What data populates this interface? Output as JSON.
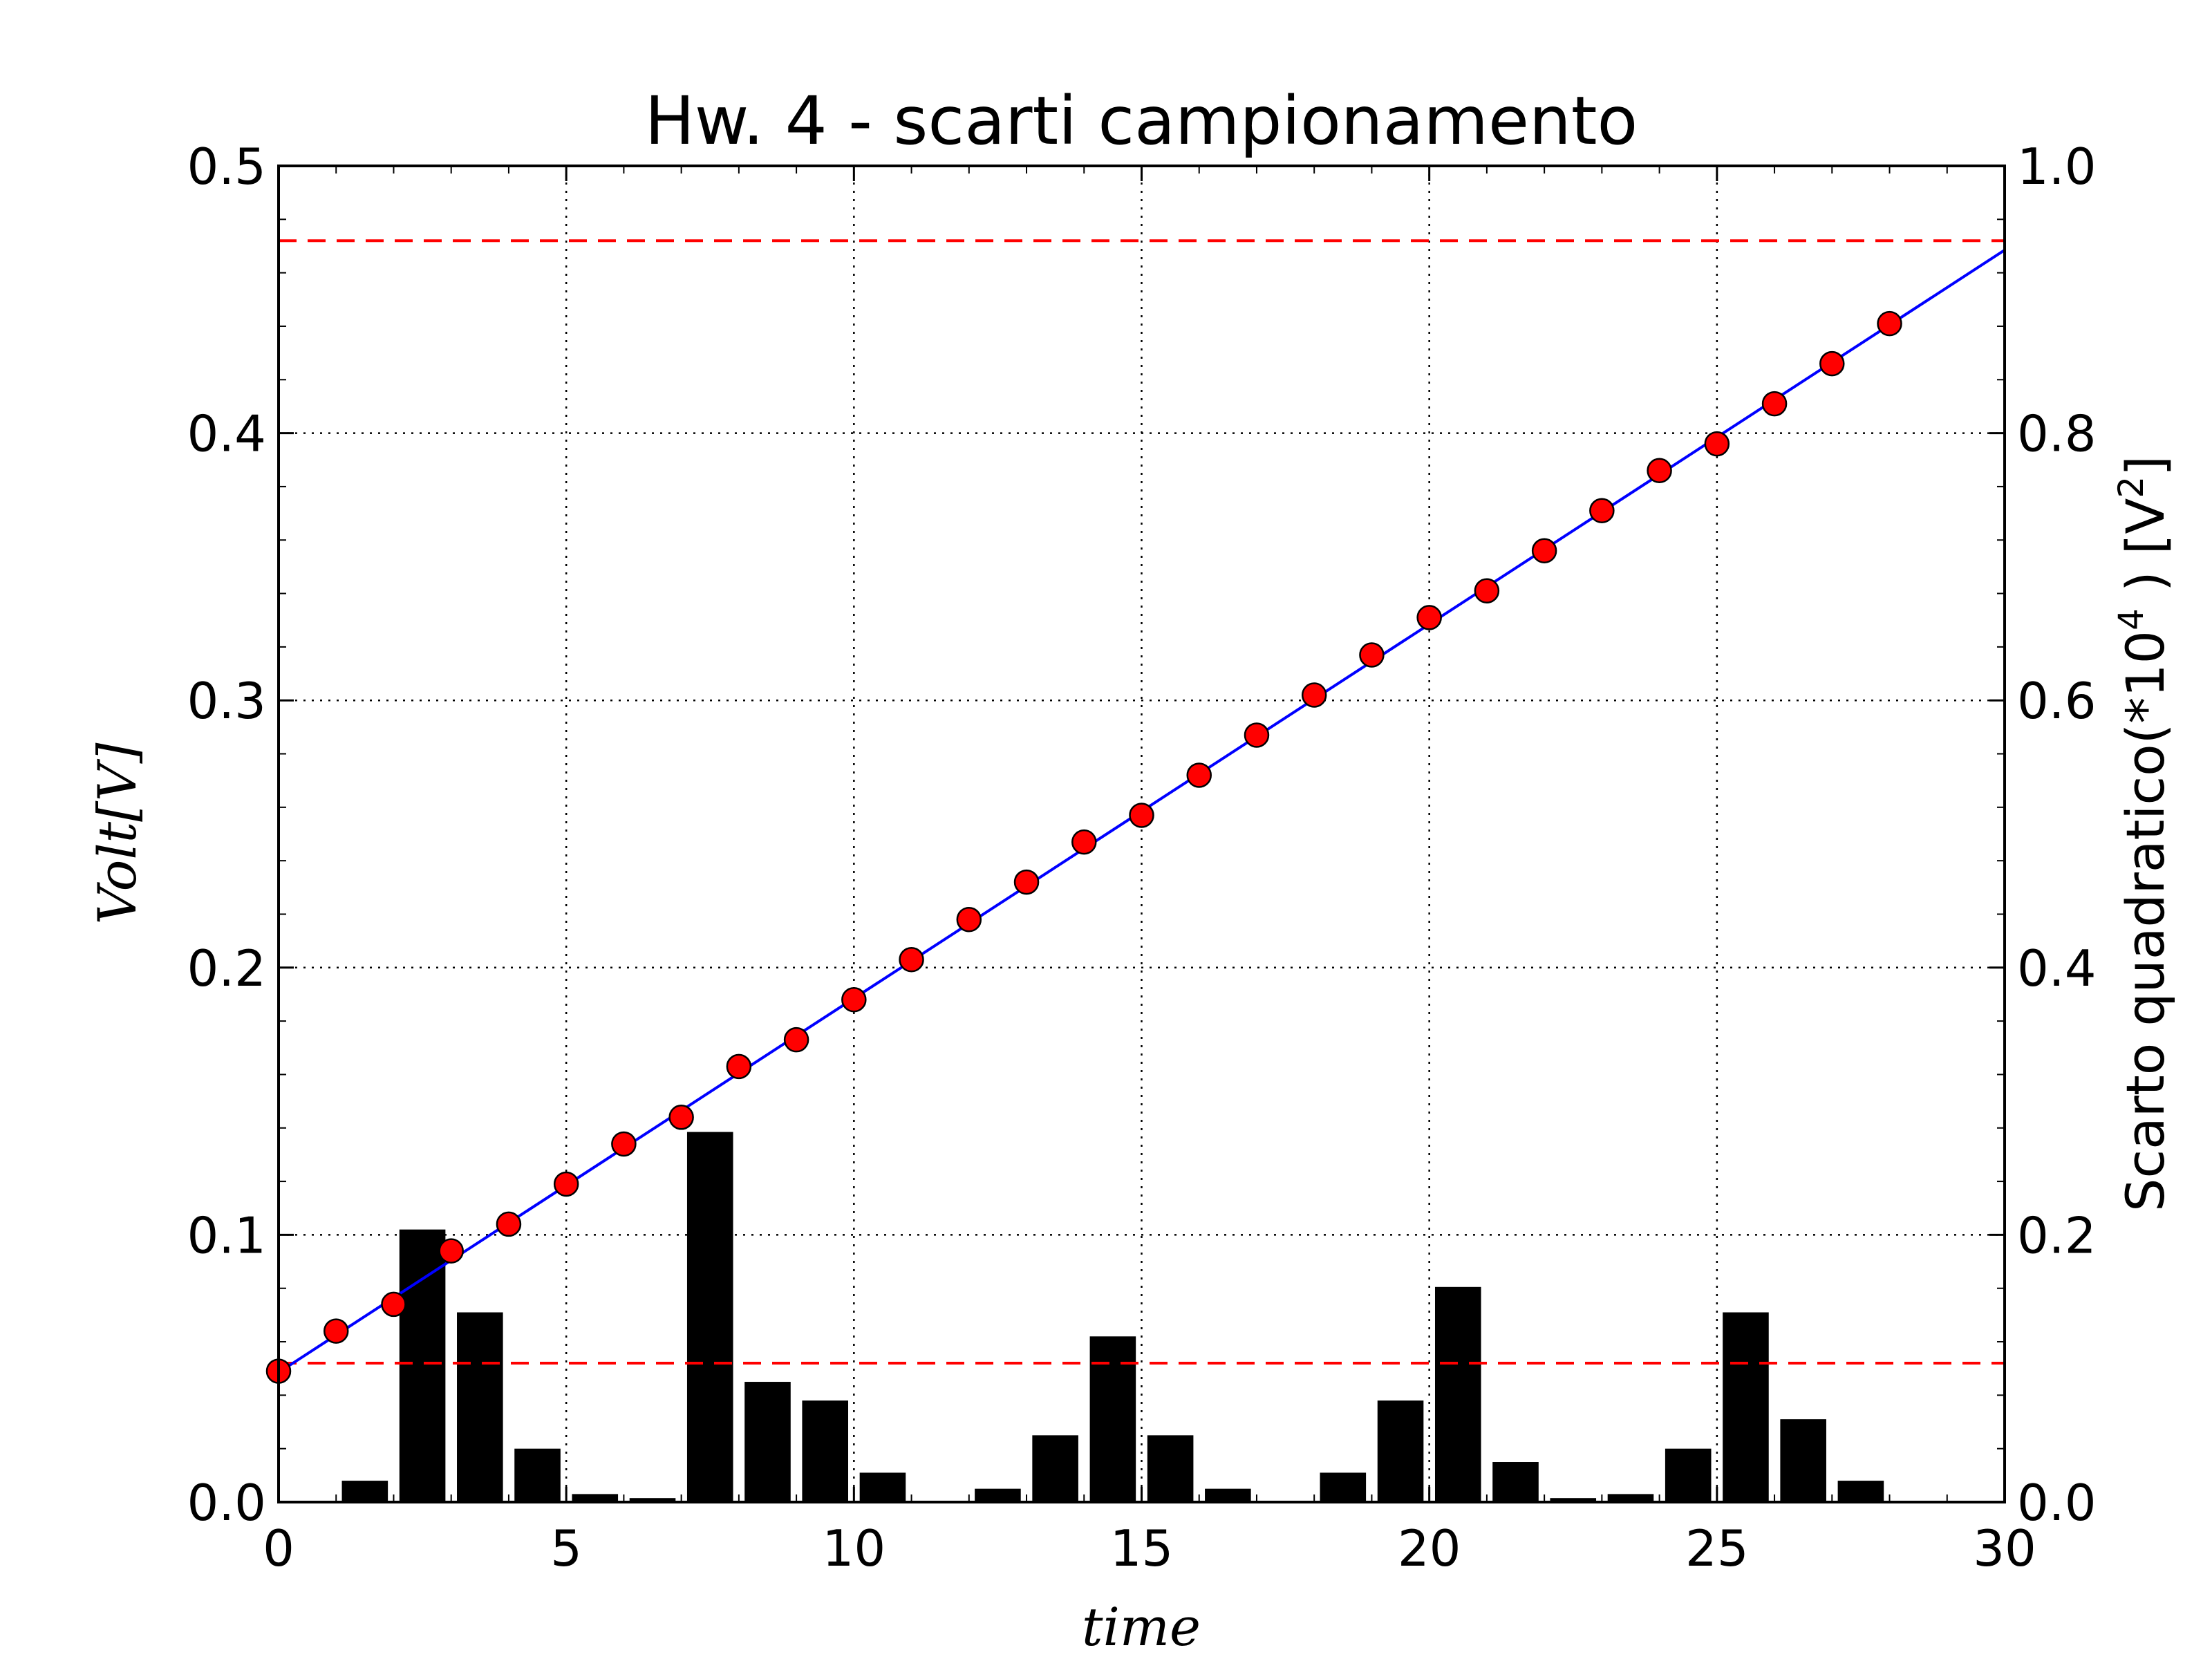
{
  "chart_data": {
    "type": "bar",
    "title": "Hw. 4 - scarti campionamento",
    "xlabel": "time",
    "ylabel": "Volt[V]",
    "ylabel_right": "Scarto quadratico(*10^4 ) [V^2]",
    "ylabel_right_parts": {
      "prefix": "Scarto quadratico(*10",
      "exp": "4",
      "middle": " ) [V",
      "exp2": "2",
      "suffix": "]"
    },
    "xlim": [
      0,
      30
    ],
    "ylim": [
      0,
      0.5
    ],
    "ylim_right": [
      0,
      1.0
    ],
    "xticks": [
      "0",
      "5",
      "10",
      "15",
      "20",
      "25",
      "30"
    ],
    "yticks_left": [
      "0.0",
      "0.1",
      "0.2",
      "0.3",
      "0.4",
      "0.5"
    ],
    "yticks_right": [
      "0.0",
      "0.2",
      "0.4",
      "0.6",
      "0.8",
      "1.0"
    ],
    "grid": true,
    "series": [
      {
        "kind": "scatter",
        "axis": "left",
        "color": "#ff0000",
        "x": [
          0,
          1,
          2,
          3,
          4,
          5,
          6,
          7,
          8,
          9,
          10,
          11,
          12,
          13,
          14,
          15,
          16,
          17,
          18,
          19,
          20,
          21,
          22,
          23,
          24,
          25,
          26,
          27,
          28
        ],
        "values": [
          0.049,
          0.064,
          0.074,
          0.094,
          0.104,
          0.119,
          0.134,
          0.144,
          0.163,
          0.173,
          0.188,
          0.203,
          0.218,
          0.232,
          0.247,
          0.257,
          0.272,
          0.287,
          0.302,
          0.317,
          0.331,
          0.341,
          0.356,
          0.371,
          0.386,
          0.396,
          0.411,
          0.426,
          0.441
        ]
      },
      {
        "kind": "line",
        "axis": "left",
        "color": "#0000ff",
        "x": [
          0,
          30
        ],
        "values": [
          0.0485,
          0.4685
        ]
      },
      {
        "kind": "bar",
        "axis": "right",
        "color": "#000000",
        "x": [
          1,
          2,
          3,
          4,
          5,
          6,
          7,
          8,
          9,
          10,
          11,
          12,
          13,
          14,
          15,
          16,
          17,
          18,
          19,
          20,
          21,
          22,
          23,
          24,
          25,
          26,
          27,
          28
        ],
        "values": [
          0.016,
          0.204,
          0.142,
          0.04,
          0.006,
          0.003,
          0.277,
          0.09,
          0.076,
          0.022,
          0.001,
          0.01,
          0.05,
          0.124,
          0.05,
          0.01,
          0.001,
          0.022,
          0.076,
          0.161,
          0.03,
          0.003,
          0.006,
          0.04,
          0.142,
          0.062,
          0.016,
          0.0
        ]
      },
      {
        "kind": "hline",
        "axis": "right",
        "color": "#ff0000",
        "style": "dashed",
        "values": [
          0.944,
          0.104
        ]
      }
    ]
  }
}
